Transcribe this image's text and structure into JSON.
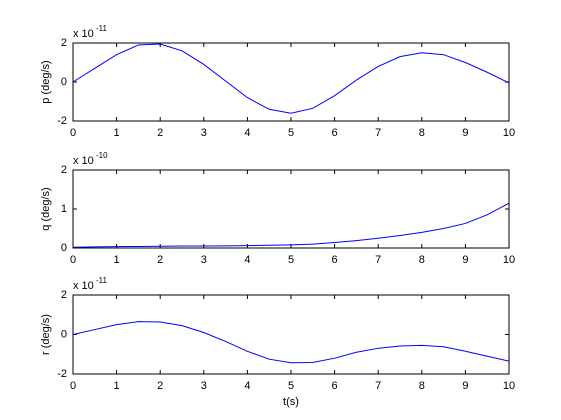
{
  "chart_data": [
    {
      "type": "line",
      "ylabel": "p (deg/s)",
      "y_multiplier": "x 10",
      "y_exponent": "-11",
      "x": [
        0,
        0.5,
        1,
        1.5,
        2,
        2.5,
        3,
        3.5,
        4,
        4.5,
        5,
        5.5,
        6,
        6.5,
        7,
        7.5,
        8,
        8.5,
        9,
        9.5,
        10
      ],
      "values": [
        0,
        0.7,
        1.4,
        1.9,
        1.95,
        1.6,
        0.9,
        0.05,
        -0.8,
        -1.4,
        -1.6,
        -1.35,
        -0.7,
        0.1,
        0.8,
        1.3,
        1.5,
        1.4,
        1.0,
        0.5,
        -0.05
      ],
      "color": "#0000ff",
      "xlim": [
        0,
        10
      ],
      "xticks": [
        0,
        1,
        2,
        3,
        4,
        5,
        6,
        7,
        8,
        9,
        10
      ],
      "ylim": [
        -2,
        2
      ],
      "yticks": [
        -2,
        0,
        2
      ]
    },
    {
      "type": "line",
      "ylabel": "q (deg/s)",
      "y_multiplier": "x 10",
      "y_exponent": "-10",
      "x": [
        0,
        0.5,
        1,
        1.5,
        2,
        2.5,
        3,
        3.5,
        4,
        4.5,
        5,
        5.5,
        6,
        6.5,
        7,
        7.5,
        8,
        8.5,
        9,
        9.5,
        10
      ],
      "values": [
        0.02,
        0.03,
        0.035,
        0.04,
        0.045,
        0.05,
        0.05,
        0.055,
        0.06,
        0.07,
        0.08,
        0.1,
        0.14,
        0.19,
        0.25,
        0.32,
        0.4,
        0.5,
        0.63,
        0.85,
        1.15
      ],
      "color": "#0000ff",
      "xlim": [
        0,
        10
      ],
      "xticks": [
        0,
        1,
        2,
        3,
        4,
        5,
        6,
        7,
        8,
        9,
        10
      ],
      "ylim": [
        0,
        2
      ],
      "yticks": [
        0,
        1,
        2
      ]
    },
    {
      "type": "line",
      "ylabel": "r (deg/s)",
      "y_multiplier": "x 10",
      "y_exponent": "-11",
      "xlabel": "t(s)",
      "x": [
        0,
        0.5,
        1,
        1.5,
        2,
        2.5,
        3,
        3.5,
        4,
        4.5,
        5,
        5.5,
        6,
        6.5,
        7,
        7.5,
        8,
        8.5,
        9,
        9.5,
        10
      ],
      "values": [
        0,
        0.25,
        0.5,
        0.65,
        0.63,
        0.45,
        0.1,
        -0.35,
        -0.85,
        -1.25,
        -1.43,
        -1.42,
        -1.2,
        -0.9,
        -0.7,
        -0.58,
        -0.55,
        -0.62,
        -0.85,
        -1.1,
        -1.35
      ],
      "color": "#0000ff",
      "xlim": [
        0,
        10
      ],
      "xticks": [
        0,
        1,
        2,
        3,
        4,
        5,
        6,
        7,
        8,
        9,
        10
      ],
      "ylim": [
        -2,
        2
      ],
      "yticks": [
        -2,
        0,
        2
      ]
    }
  ]
}
